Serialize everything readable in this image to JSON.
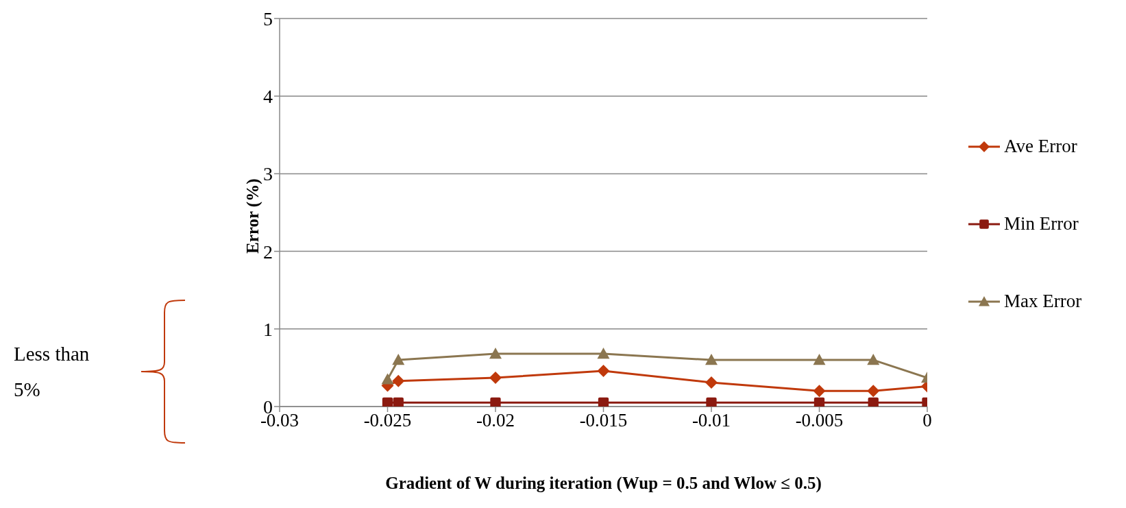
{
  "chart_data": {
    "type": "line",
    "xlabel": "Gradient of W during iteration (Wup = 0.5 and Wlow ≤ 0.5)",
    "ylabel": "Error (%)",
    "x": [
      -0.025,
      -0.0245,
      -0.02,
      -0.015,
      -0.01,
      -0.005,
      -0.0025,
      0
    ],
    "series": [
      {
        "name": "Ave Error",
        "color": "#c0390b",
        "marker": "diamond",
        "values": [
          0.27,
          0.33,
          0.37,
          0.46,
          0.31,
          0.2,
          0.2,
          0.26
        ]
      },
      {
        "name": "Min Error",
        "color": "#8b1a10",
        "marker": "square",
        "values": [
          0.05,
          0.05,
          0.05,
          0.05,
          0.05,
          0.05,
          0.05,
          0.05
        ]
      },
      {
        "name": "Max Error",
        "color": "#8b7650",
        "marker": "triangle",
        "values": [
          0.35,
          0.6,
          0.68,
          0.68,
          0.6,
          0.6,
          0.6,
          0.37
        ]
      }
    ],
    "xlim": [
      -0.03,
      0
    ],
    "xticks": [
      -0.03,
      -0.025,
      -0.02,
      -0.015,
      -0.01,
      -0.005,
      0
    ],
    "ylim": [
      0,
      5
    ],
    "yticks": [
      0,
      1,
      2,
      3,
      4,
      5
    ],
    "grid": "y",
    "legend": "right",
    "line_style": "solid",
    "annotations": [
      "Less than 5%"
    ]
  }
}
